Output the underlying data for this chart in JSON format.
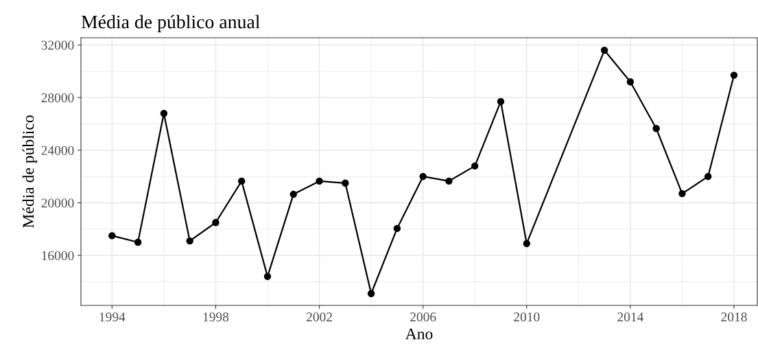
{
  "chart_data": {
    "type": "line",
    "title": "Média de público anual",
    "xlabel": "Ano",
    "ylabel": "Média de público",
    "x": [
      1994,
      1995,
      1996,
      1997,
      1998,
      1999,
      2000,
      2001,
      2002,
      2003,
      2004,
      2005,
      2006,
      2007,
      2008,
      2009,
      2010,
      2013,
      2014,
      2015,
      2016,
      2017,
      2018
    ],
    "series": [
      {
        "color": "#000000",
        "values": [
          17500,
          17000,
          26800,
          17100,
          18500,
          21650,
          14400,
          20650,
          21650,
          21500,
          13100,
          18050,
          22000,
          21650,
          22800,
          27700,
          16900,
          31600,
          29200,
          25650,
          20700,
          22000,
          29700
        ]
      }
    ],
    "xlim": [
      1992.8,
      2018.9
    ],
    "ylim": [
      12200,
      32550
    ],
    "xticks": [
      1994,
      1998,
      2002,
      2006,
      2010,
      2014,
      2018
    ],
    "yticks": [
      16000,
      20000,
      24000,
      28000,
      32000
    ],
    "grid": true,
    "marker": "circle",
    "line_style": "solid"
  }
}
